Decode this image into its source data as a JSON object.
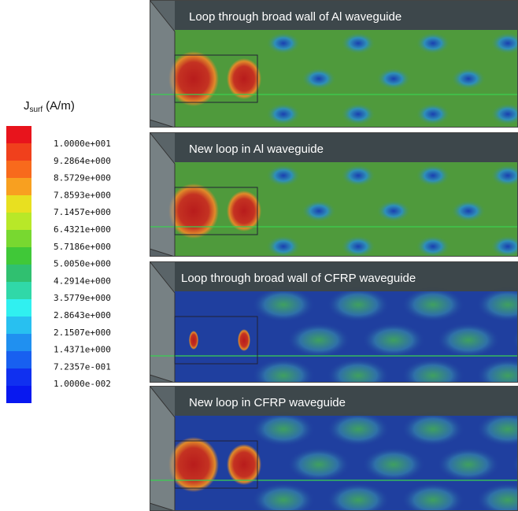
{
  "legend": {
    "title": {
      "symbol": "J",
      "subscript": "surf",
      "unit": "(A/m)"
    },
    "labels": [
      "1.0000e+001",
      "9.2864e+000",
      "8.5729e+000",
      "7.8593e+000",
      "7.1457e+000",
      "6.4321e+000",
      "5.7186e+000",
      "5.0050e+000",
      "4.2914e+000",
      "3.5779e+000",
      "2.8643e+000",
      "2.1507e+000",
      "1.4371e+000",
      "7.2357e-001",
      "1.0000e-002"
    ]
  },
  "panels": [
    {
      "title": "Loop through broad wall of Al waveguide"
    },
    {
      "title": "New loop in Al waveguide"
    },
    {
      "title": "Loop through broad wall of CFRP waveguide"
    },
    {
      "title": "New loop in CFRP waveguide"
    }
  ]
}
